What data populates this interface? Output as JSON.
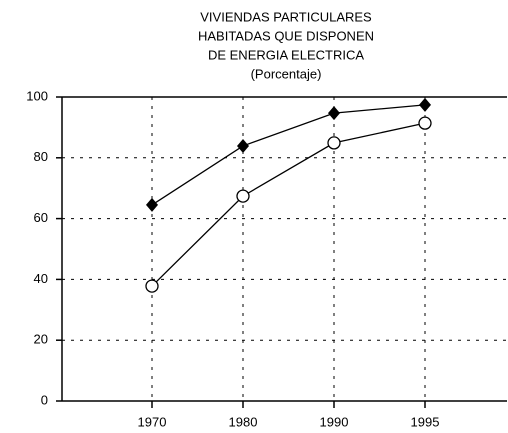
{
  "chart_data": {
    "type": "line",
    "title": [
      "VIVIENDAS PARTICULARES",
      "HABITADAS QUE DISPONEN",
      "DE ENERGIA ELECTRICA"
    ],
    "subtitle": "(Porcentaje)",
    "categories": [
      "1970",
      "1980",
      "1990",
      "1995"
    ],
    "series": [
      {
        "color": "#000000",
        "marker": "diamond",
        "values": [
          64.5,
          83.9,
          94.7,
          97.4
        ]
      },
      {
        "color": "#000000",
        "marker": "circle",
        "values": [
          37.8,
          67.4,
          84.9,
          91.4
        ]
      }
    ],
    "ylim": [
      0,
      100
    ],
    "yticks": [
      0,
      20,
      40,
      60,
      80,
      100
    ],
    "grid": true
  }
}
